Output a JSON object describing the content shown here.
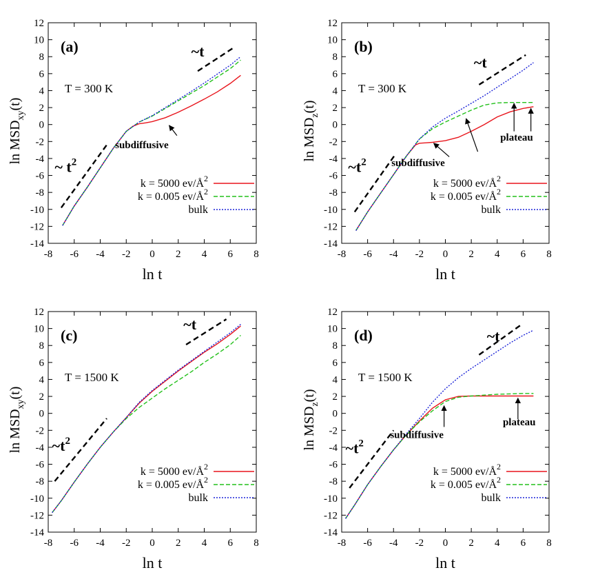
{
  "figure": {
    "label": "Figure"
  },
  "colors": {
    "series_0": "#e8141b",
    "series_1": "#22c01a",
    "series_2": "#1a22d8",
    "guide": "#000000",
    "axes": "#000000"
  },
  "chart_data": [
    {
      "type": "line",
      "panel_label": "(a)",
      "temperature": "T = 300 K",
      "xlabel": "ln t",
      "ylabel_main": "ln MSD",
      "ylabel_sub": "xy",
      "ylabel_tail": "(t)",
      "xlim": [
        -8,
        8
      ],
      "ylim": [
        -14,
        12
      ],
      "xticks": [
        -8,
        -6,
        -4,
        -2,
        0,
        2,
        4,
        6,
        8
      ],
      "yticks": [
        -14,
        -12,
        -10,
        -8,
        -6,
        -4,
        -2,
        0,
        2,
        4,
        6,
        8,
        10,
        12
      ],
      "grid": false,
      "legend_position": "bottom-right",
      "series": [
        {
          "name": "k = 5000 ev/Å",
          "name_sup": "2",
          "style": "solid",
          "x": [
            -6.9,
            -6,
            -5,
            -4,
            -3,
            -2,
            -1.5,
            -1,
            -0.5,
            0,
            1,
            2,
            3,
            4,
            5,
            6,
            6.8
          ],
          "y": [
            -11.9,
            -9.6,
            -7.4,
            -5.1,
            -2.8,
            -0.8,
            -0.2,
            0.1,
            0.2,
            0.35,
            0.8,
            1.45,
            2.2,
            3.0,
            3.85,
            4.85,
            5.8
          ]
        },
        {
          "name": "k = 0.005 ev/Å",
          "name_sup": "2",
          "style": "dashed",
          "x": [
            -6.9,
            -6,
            -5,
            -4,
            -3,
            -2,
            -1,
            0,
            1,
            2,
            3,
            4,
            5,
            6,
            6.8
          ],
          "y": [
            -11.9,
            -9.6,
            -7.4,
            -5.1,
            -2.8,
            -0.8,
            0.3,
            1.0,
            1.9,
            2.8,
            3.7,
            4.6,
            5.6,
            6.6,
            7.6
          ]
        },
        {
          "name": "bulk",
          "style": "dotted",
          "x": [
            -6.9,
            -6,
            -5,
            -4,
            -3,
            -2,
            -1,
            0,
            1,
            2,
            3,
            4,
            5,
            6,
            6.8
          ],
          "y": [
            -11.9,
            -9.6,
            -7.4,
            -5.1,
            -2.8,
            -0.8,
            0.3,
            1.05,
            2.0,
            2.95,
            3.9,
            4.9,
            5.95,
            7.0,
            8.0
          ]
        }
      ],
      "guides": [
        {
          "x": [
            -7,
            -3.5
          ],
          "y": [
            -9.8,
            -2.4
          ],
          "label": "~ t",
          "label_sup": "2",
          "label_x": -7.5,
          "label_y": -5.6
        },
        {
          "x": [
            3.5,
            6.2
          ],
          "y": [
            6.3,
            9.0
          ],
          "label": "~t",
          "label_sup": "",
          "label_x": 3.0,
          "label_y": 8.0
        }
      ],
      "annotations": [
        {
          "text": "subdiffusive",
          "x": -0.8,
          "y": -2.8,
          "arrow_from": [
            1.9,
            -1.3
          ],
          "arrow_to": [
            1.3,
            -0.1
          ]
        }
      ]
    },
    {
      "type": "line",
      "panel_label": "(b)",
      "temperature": "T = 300 K",
      "xlabel": "ln t",
      "ylabel_main": "ln MSD",
      "ylabel_sub": "z",
      "ylabel_tail": "(t)",
      "xlim": [
        -8,
        8
      ],
      "ylim": [
        -14,
        12
      ],
      "xticks": [
        -8,
        -6,
        -4,
        -2,
        0,
        2,
        4,
        6,
        8
      ],
      "yticks": [
        -14,
        -12,
        -10,
        -8,
        -6,
        -4,
        -2,
        0,
        2,
        4,
        6,
        8,
        10,
        12
      ],
      "grid": false,
      "legend_position": "bottom-right",
      "series": [
        {
          "name": "k = 5000 ev/Å",
          "name_sup": "2",
          "style": "solid",
          "x": [
            -6.9,
            -6,
            -5,
            -4,
            -3,
            -2.3,
            -2,
            -1.5,
            -1,
            0,
            1,
            2,
            3,
            4,
            5,
            6,
            6.8
          ],
          "y": [
            -12.5,
            -10.3,
            -8.1,
            -5.9,
            -3.7,
            -2.4,
            -2.2,
            -2.15,
            -2.1,
            -1.9,
            -1.5,
            -0.8,
            0.0,
            0.9,
            1.5,
            1.9,
            2.1
          ]
        },
        {
          "name": "k = 0.005 ev/Å",
          "name_sup": "2",
          "style": "dashed",
          "x": [
            -6.9,
            -6,
            -5,
            -4,
            -3,
            -2,
            -1,
            0,
            1,
            2,
            3,
            4,
            5,
            6,
            6.8
          ],
          "y": [
            -12.5,
            -10.3,
            -8.1,
            -5.9,
            -3.7,
            -1.7,
            -0.5,
            0.3,
            1.0,
            1.7,
            2.3,
            2.55,
            2.6,
            2.6,
            2.6
          ]
        },
        {
          "name": "bulk",
          "style": "dotted",
          "x": [
            -6.9,
            -6,
            -5,
            -4,
            -3,
            -2,
            -1,
            0,
            1,
            2,
            3,
            4,
            5,
            6,
            6.8
          ],
          "y": [
            -12.5,
            -10.3,
            -8.1,
            -5.9,
            -3.7,
            -1.7,
            -0.3,
            0.75,
            1.6,
            2.5,
            3.4,
            4.4,
            5.4,
            6.4,
            7.3
          ]
        }
      ],
      "guides": [
        {
          "x": [
            -7,
            -3.9
          ],
          "y": [
            -10.3,
            -3.6
          ],
          "label": "~t",
          "label_sup": "2",
          "label_x": -7.5,
          "label_y": -5.6
        },
        {
          "x": [
            2.6,
            6.2
          ],
          "y": [
            4.7,
            8.2
          ],
          "label": "~t",
          "label_sup": "",
          "label_x": 2.2,
          "label_y": 6.7
        }
      ],
      "annotations": [
        {
          "text": "subdiffusive",
          "x": -2.1,
          "y": -4.9,
          "arrow_from": [
            0.3,
            -3.8
          ],
          "arrow_to": [
            -0.9,
            -2.2
          ]
        },
        {
          "text": "plateau",
          "x": 5.5,
          "y": -1.9,
          "arrow_from": [
            0,
            0
          ],
          "arrow_to": [
            0,
            0
          ]
        }
      ],
      "arrows": [
        {
          "from": [
            2.5,
            -3.2
          ],
          "to": [
            1.6,
            0.7
          ]
        },
        {
          "from": [
            5.3,
            -0.8
          ],
          "to": [
            5.3,
            2.5
          ]
        },
        {
          "from": [
            6.6,
            -0.8
          ],
          "to": [
            6.6,
            1.9
          ]
        }
      ]
    },
    {
      "type": "line",
      "panel_label": "(c)",
      "temperature": "T = 1500 K",
      "xlabel": "ln t",
      "ylabel_main": "ln MSD",
      "ylabel_sub": "xy",
      "ylabel_tail": "(t)",
      "xlim": [
        -8,
        8
      ],
      "ylim": [
        -14,
        12
      ],
      "xticks": [
        -8,
        -6,
        -4,
        -2,
        0,
        2,
        4,
        6,
        8
      ],
      "yticks": [
        -14,
        -12,
        -10,
        -8,
        -6,
        -4,
        -2,
        0,
        2,
        4,
        6,
        8,
        10,
        12
      ],
      "grid": false,
      "legend_position": "bottom-right",
      "series": [
        {
          "name": "k = 5000 ev/Å",
          "name_sup": "2",
          "style": "solid",
          "x": [
            -7.7,
            -7,
            -6,
            -5,
            -4,
            -3,
            -2,
            -1,
            0,
            1,
            2,
            3,
            4,
            5,
            6,
            6.8
          ],
          "y": [
            -11.7,
            -10.3,
            -8.1,
            -6.0,
            -4.0,
            -2.2,
            -0.5,
            1.2,
            2.6,
            3.8,
            5.0,
            6.1,
            7.2,
            8.2,
            9.3,
            10.3
          ]
        },
        {
          "name": "k = 0.005 ev/Å",
          "name_sup": "2",
          "style": "dashed",
          "x": [
            -7.7,
            -7,
            -6,
            -5,
            -4,
            -3,
            -2,
            -1,
            0,
            1,
            2,
            3,
            4,
            5,
            6,
            6.8
          ],
          "y": [
            -11.7,
            -10.3,
            -8.1,
            -6.0,
            -4.0,
            -2.2,
            -0.6,
            0.7,
            1.8,
            2.9,
            3.9,
            4.9,
            6.0,
            7.0,
            8.1,
            9.2
          ]
        },
        {
          "name": "bulk",
          "style": "dotted",
          "x": [
            -7.7,
            -7,
            -6,
            -5,
            -4,
            -3,
            -2,
            -1,
            0,
            1,
            2,
            3,
            4,
            5,
            6,
            6.8
          ],
          "y": [
            -11.7,
            -10.3,
            -8.1,
            -6.0,
            -4.0,
            -2.2,
            -0.5,
            1.3,
            2.7,
            3.9,
            5.1,
            6.2,
            7.3,
            8.4,
            9.5,
            10.5
          ]
        }
      ],
      "guides": [
        {
          "x": [
            -7.5,
            -3.5
          ],
          "y": [
            -8.0,
            -0.6
          ],
          "label": "~t",
          "label_sup": "2",
          "label_x": -7.7,
          "label_y": -4.4
        },
        {
          "x": [
            2.6,
            5.7
          ],
          "y": [
            8.1,
            11.1
          ],
          "label": "~t",
          "label_sup": "",
          "label_x": 2.4,
          "label_y": 9.9
        }
      ],
      "annotations": []
    },
    {
      "type": "line",
      "panel_label": "(d)",
      "temperature": "T = 1500 K",
      "xlabel": "ln t",
      "ylabel_main": "ln MSD",
      "ylabel_sub": "z",
      "ylabel_tail": "(t)",
      "xlim": [
        -8,
        8
      ],
      "ylim": [
        -14,
        12
      ],
      "xticks": [
        -8,
        -6,
        -4,
        -2,
        0,
        2,
        4,
        6,
        8
      ],
      "yticks": [
        -14,
        -12,
        -10,
        -8,
        -6,
        -4,
        -2,
        0,
        2,
        4,
        6,
        8,
        10,
        12
      ],
      "grid": false,
      "legend_position": "bottom-right",
      "series": [
        {
          "name": "k = 5000 ev/Å",
          "name_sup": "2",
          "style": "solid",
          "x": [
            -7.7,
            -7,
            -6,
            -5,
            -4,
            -3,
            -2,
            -1,
            0,
            1,
            2,
            3,
            4,
            5,
            6,
            6.8
          ],
          "y": [
            -12.4,
            -10.8,
            -8.4,
            -6.3,
            -4.3,
            -2.5,
            -0.9,
            0.6,
            1.6,
            2.0,
            2.05,
            2.05,
            2.05,
            2.05,
            2.05,
            2.05
          ]
        },
        {
          "name": "k = 0.005 ev/Å",
          "name_sup": "2",
          "style": "dashed",
          "x": [
            -7.7,
            -7,
            -6,
            -5,
            -4,
            -3,
            -2,
            -1,
            0,
            1,
            2,
            3,
            4,
            5,
            6,
            6.8
          ],
          "y": [
            -12.4,
            -10.8,
            -8.4,
            -6.3,
            -4.3,
            -2.5,
            -1.0,
            0.3,
            1.4,
            1.9,
            2.05,
            2.15,
            2.25,
            2.3,
            2.35,
            2.35
          ]
        },
        {
          "name": "bulk",
          "style": "dotted",
          "x": [
            -7.7,
            -7,
            -6,
            -5,
            -4,
            -3,
            -2,
            -1,
            0,
            1,
            2,
            3,
            4,
            5,
            6,
            6.8
          ],
          "y": [
            -12.4,
            -10.8,
            -8.4,
            -6.3,
            -4.3,
            -2.4,
            -0.6,
            1.3,
            2.9,
            4.2,
            5.3,
            6.3,
            7.3,
            8.3,
            9.2,
            9.8
          ]
        }
      ],
      "guides": [
        {
          "x": [
            -7.4,
            -4
          ],
          "y": [
            -8.8,
            -2.0
          ],
          "label": "~t",
          "label_sup": "2",
          "label_x": -7.7,
          "label_y": -4.7
        },
        {
          "x": [
            2.6,
            5.9
          ],
          "y": [
            6.9,
            10.5
          ],
          "label": "~t",
          "label_sup": "",
          "label_x": 3.2,
          "label_y": 8.5
        }
      ],
      "annotations": [
        {
          "text": "subdiffusive",
          "x": -2.2,
          "y": -2.9,
          "arrow_from": [
            0,
            0
          ],
          "arrow_to": [
            0,
            0
          ]
        },
        {
          "text": "plateau",
          "x": 5.7,
          "y": -1.4,
          "arrow_from": [
            0,
            0
          ],
          "arrow_to": [
            0,
            0
          ]
        }
      ],
      "arrows": [
        {
          "from": [
            -0.1,
            -1.6
          ],
          "to": [
            -0.1,
            0.9
          ]
        },
        {
          "from": [
            5.6,
            -0.7
          ],
          "to": [
            5.6,
            1.8
          ]
        }
      ]
    }
  ]
}
